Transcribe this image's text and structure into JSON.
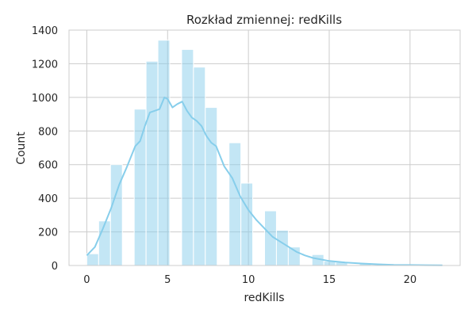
{
  "chart_data": {
    "type": "bar",
    "title": "Rozkład zmiennej: redKills",
    "xlabel": "redKills",
    "ylabel": "Count",
    "xlim": [
      -1.1,
      23.1
    ],
    "ylim": [
      0,
      1400
    ],
    "x_ticks": [
      0,
      5,
      10,
      15,
      20
    ],
    "y_ticks": [
      0,
      200,
      400,
      600,
      800,
      1000,
      1200,
      1400
    ],
    "grid": true,
    "bin_width": 0.733,
    "bins": [
      {
        "start": 0.0,
        "end": 0.733,
        "count": 70
      },
      {
        "start": 0.733,
        "end": 1.467,
        "count": 265
      },
      {
        "start": 1.467,
        "end": 2.2,
        "count": 600
      },
      {
        "start": 2.2,
        "end": 2.933,
        "count": 0
      },
      {
        "start": 2.933,
        "end": 3.667,
        "count": 930
      },
      {
        "start": 3.667,
        "end": 4.4,
        "count": 1215
      },
      {
        "start": 4.4,
        "end": 5.133,
        "count": 1340
      },
      {
        "start": 5.133,
        "end": 5.867,
        "count": 0
      },
      {
        "start": 5.867,
        "end": 6.6,
        "count": 1285
      },
      {
        "start": 6.6,
        "end": 7.333,
        "count": 1180
      },
      {
        "start": 7.333,
        "end": 8.067,
        "count": 940
      },
      {
        "start": 8.067,
        "end": 8.8,
        "count": 0
      },
      {
        "start": 8.8,
        "end": 9.533,
        "count": 730
      },
      {
        "start": 9.533,
        "end": 10.267,
        "count": 490
      },
      {
        "start": 10.267,
        "end": 11.0,
        "count": 0
      },
      {
        "start": 11.0,
        "end": 11.733,
        "count": 325
      },
      {
        "start": 11.733,
        "end": 12.467,
        "count": 210
      },
      {
        "start": 12.467,
        "end": 13.2,
        "count": 110
      },
      {
        "start": 13.2,
        "end": 13.933,
        "count": 0
      },
      {
        "start": 13.933,
        "end": 14.667,
        "count": 65
      },
      {
        "start": 14.667,
        "end": 15.4,
        "count": 25
      },
      {
        "start": 15.4,
        "end": 16.133,
        "count": 20
      },
      {
        "start": 16.133,
        "end": 16.867,
        "count": 0
      },
      {
        "start": 16.867,
        "end": 17.6,
        "count": 10
      },
      {
        "start": 17.6,
        "end": 18.333,
        "count": 5
      },
      {
        "start": 18.333,
        "end": 19.067,
        "count": 2
      },
      {
        "start": 19.067,
        "end": 19.8,
        "count": 0
      },
      {
        "start": 19.8,
        "end": 20.533,
        "count": 1
      },
      {
        "start": 20.533,
        "end": 21.267,
        "count": 1
      },
      {
        "start": 21.267,
        "end": 22.0,
        "count": 1
      }
    ],
    "kde": {
      "x": [
        0,
        0.5,
        1,
        1.5,
        2,
        2.5,
        3,
        3.3,
        3.6,
        3.9,
        4.2,
        4.5,
        4.8,
        5.0,
        5.3,
        5.6,
        5.9,
        6.2,
        6.5,
        6.8,
        7.1,
        7.4,
        7.7,
        8,
        8.5,
        9,
        9.5,
        10,
        10.5,
        11,
        11.5,
        12,
        12.5,
        13,
        13.5,
        14,
        15,
        16,
        17,
        18,
        19,
        20,
        21,
        22
      ],
      "y": [
        60,
        110,
        220,
        340,
        480,
        590,
        710,
        740,
        830,
        910,
        920,
        930,
        1000,
        990,
        940,
        960,
        975,
        920,
        880,
        860,
        830,
        770,
        730,
        710,
        590,
        520,
        410,
        330,
        270,
        220,
        170,
        140,
        110,
        80,
        60,
        45,
        27,
        18,
        12,
        7,
        4,
        3,
        2,
        1
      ]
    },
    "colors": {
      "bar_fill": "#87ceeb",
      "bar_opacity": 0.5,
      "bar_edge": "#ffffff",
      "kde_line": "#87ceeb",
      "grid": "#cccccc",
      "frame": "#cccccc"
    }
  }
}
